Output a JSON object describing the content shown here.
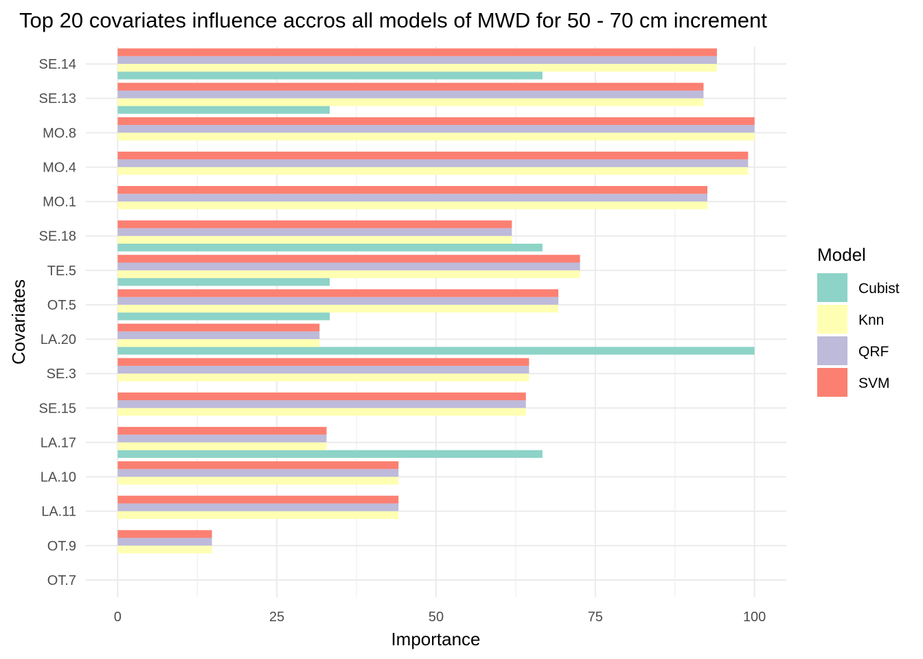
{
  "chart_data": {
    "type": "bar",
    "orientation": "horizontal",
    "title": "Top 20 covariates influence accros all models of MWD for 50 - 70 cm increment",
    "xlabel": "Importance",
    "ylabel": "Covariates",
    "xlim": [
      -5,
      105
    ],
    "xticks": [
      0,
      25,
      50,
      75,
      100
    ],
    "xtick_labels": [
      "0",
      "25",
      "50",
      "75",
      "100"
    ],
    "grid": true,
    "legend_position": "right",
    "legend_title": "Model",
    "categories": [
      "SE.14",
      "SE.13",
      "MO.8",
      "MO.4",
      "MO.1",
      "SE.18",
      "TE.5",
      "OT.5",
      "LA.20",
      "SE.3",
      "SE.15",
      "LA.17",
      "LA.10",
      "LA.11",
      "OT.9",
      "OT.7"
    ],
    "series": [
      {
        "name": "Cubist",
        "color": "#8DD3C7",
        "values": [
          66.7,
          33.3,
          0,
          0,
          0,
          66.7,
          33.3,
          33.3,
          100,
          0,
          0,
          66.7,
          0,
          0,
          0,
          0
        ]
      },
      {
        "name": "Knn",
        "color": "#FFFFB3",
        "values": [
          94.1,
          92.0,
          100,
          99.0,
          92.6,
          61.9,
          72.6,
          69.2,
          31.7,
          64.6,
          64.1,
          32.8,
          44.1,
          44.1,
          14.8,
          0
        ]
      },
      {
        "name": "QRF",
        "color": "#BEBADA",
        "values": [
          94.1,
          92.0,
          100,
          99.0,
          92.6,
          61.9,
          72.6,
          69.2,
          31.7,
          64.6,
          64.1,
          32.8,
          44.1,
          44.1,
          14.8,
          0
        ]
      },
      {
        "name": "SVM",
        "color": "#FB8072",
        "values": [
          94.1,
          92.0,
          100,
          99.0,
          92.6,
          61.9,
          72.6,
          69.2,
          31.7,
          64.6,
          64.1,
          32.8,
          44.1,
          44.1,
          14.8,
          0
        ]
      }
    ]
  }
}
